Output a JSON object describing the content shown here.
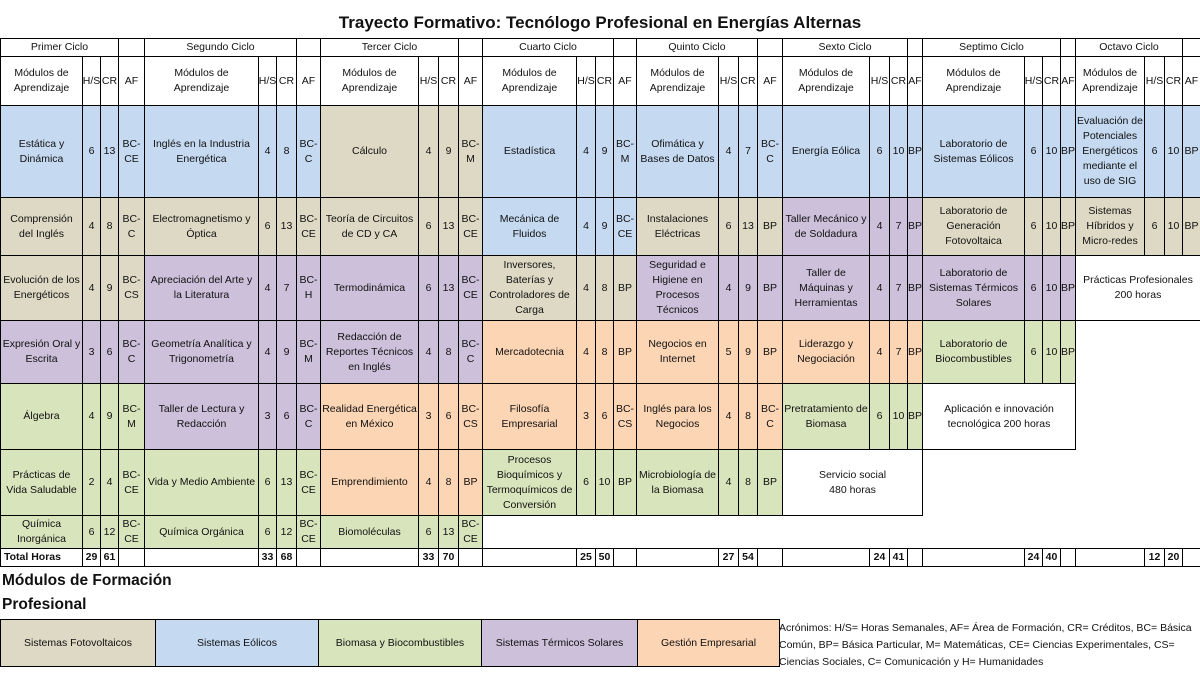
{
  "title": "Trayecto Formativo: Tecnólogo Profesional en Energías Alternas",
  "colors": {
    "fotovoltaicos": "#ddd9c4",
    "eolicos": "#c5d9f1",
    "biomasa": "#d8e4bc",
    "termicos": "#ccc0da",
    "gestion": "#fcd5b4",
    "none": "#ffffff"
  },
  "cycles": [
    {
      "name": "Primer Ciclo",
      "headers": {
        "module": "Módulos de Aprendizaje",
        "hs": "H/S",
        "cr": "CR",
        "af": "AF"
      },
      "modules": [
        {
          "name": "Estática y Dinámica",
          "hs": "6",
          "cr": "13",
          "af": "BC-CE",
          "area": "eolicos"
        },
        {
          "name": "Comprensión del Inglés",
          "hs": "4",
          "cr": "8",
          "af": "BC-C",
          "area": "fotovoltaicos"
        },
        {
          "name": "Evolución de los Energéticos",
          "hs": "4",
          "cr": "9",
          "af": "BC-CS",
          "area": "fotovoltaicos"
        },
        {
          "name": "Expresión Oral y Escrita",
          "hs": "3",
          "cr": "6",
          "af": "BC-C",
          "area": "termicos"
        },
        {
          "name": "Álgebra",
          "hs": "4",
          "cr": "9",
          "af": "BC-M",
          "area": "biomasa"
        },
        {
          "name": "Prácticas de Vida Saludable",
          "hs": "2",
          "cr": "4",
          "af": "BC-CE",
          "area": "biomasa"
        },
        {
          "name": "Química Inorgánica",
          "hs": "6",
          "cr": "12",
          "af": "BC-CE",
          "area": "biomasa"
        }
      ],
      "total_hs": "29",
      "total_cr": "61"
    },
    {
      "name": "Segundo Ciclo",
      "headers": {
        "module": "Módulos de Aprendizaje",
        "hs": "H/S",
        "cr": "CR",
        "af": "AF"
      },
      "modules": [
        {
          "name": "Inglés en la Industria Energética",
          "hs": "4",
          "cr": "8",
          "af": "BC-C",
          "area": "eolicos"
        },
        {
          "name": "Electromagnetismo y Óptica",
          "hs": "6",
          "cr": "13",
          "af": "BC-CE",
          "area": "fotovoltaicos"
        },
        {
          "name": "Apreciación del Arte y la Literatura",
          "hs": "4",
          "cr": "7",
          "af": "BC-H",
          "area": "termicos"
        },
        {
          "name": "Geometría Analítica y Trigonometría",
          "hs": "4",
          "cr": "9",
          "af": "BC-M",
          "area": "termicos"
        },
        {
          "name": "Taller de Lectura y Redacción",
          "hs": "3",
          "cr": "6",
          "af": "BC-C",
          "area": "termicos"
        },
        {
          "name": "Vida y Medio Ambiente",
          "hs": "6",
          "cr": "13",
          "af": "BC-CE",
          "area": "biomasa"
        },
        {
          "name": "Química Orgánica",
          "hs": "6",
          "cr": "12",
          "af": "BC-CE",
          "area": "biomasa"
        }
      ],
      "total_hs": "33",
      "total_cr": "68"
    },
    {
      "name": "Tercer Ciclo",
      "headers": {
        "module": "Módulos de Aprendizaje",
        "hs": "H/S",
        "cr": "CR",
        "af": "AF"
      },
      "modules": [
        {
          "name": "Cálculo",
          "hs": "4",
          "cr": "9",
          "af": "BC-M",
          "area": "fotovoltaicos"
        },
        {
          "name": "Teoría de Circuitos de CD y CA",
          "hs": "6",
          "cr": "13",
          "af": "BC-CE",
          "area": "fotovoltaicos"
        },
        {
          "name": "Termodinámica",
          "hs": "6",
          "cr": "13",
          "af": "BC-CE",
          "area": "termicos"
        },
        {
          "name": "Redacción de Reportes Técnicos en Inglés",
          "hs": "4",
          "cr": "8",
          "af": "BC-C",
          "area": "termicos"
        },
        {
          "name": "Realidad Energética en México",
          "hs": "3",
          "cr": "6",
          "af": "BC-CS",
          "area": "gestion"
        },
        {
          "name": "Emprendimiento",
          "hs": "4",
          "cr": "8",
          "af": "BP",
          "area": "gestion"
        },
        {
          "name": "Biomoléculas",
          "hs": "6",
          "cr": "13",
          "af": "BC-CE",
          "area": "biomasa"
        }
      ],
      "total_hs": "33",
      "total_cr": "70"
    },
    {
      "name": "Cuarto Ciclo",
      "headers": {
        "module": "Módulos de Aprendizaje",
        "hs": "H/S",
        "cr": "CR",
        "af": "AF"
      },
      "modules": [
        {
          "name": "Estadística",
          "hs": "4",
          "cr": "9",
          "af": "BC-M",
          "area": "eolicos"
        },
        {
          "name": "Mecánica de Fluidos",
          "hs": "4",
          "cr": "9",
          "af": "BC-CE",
          "area": "eolicos"
        },
        {
          "name": "Inversores, Baterías y Controladores de Carga",
          "hs": "4",
          "cr": "8",
          "af": "BP",
          "area": "fotovoltaicos"
        },
        {
          "name": "Mercadotecnia",
          "hs": "4",
          "cr": "8",
          "af": "BP",
          "area": "gestion"
        },
        {
          "name": "Filosofía Empresarial",
          "hs": "3",
          "cr": "6",
          "af": "BC-CS",
          "area": "gestion"
        },
        {
          "name": "Procesos Bioquímicos y Termoquímicos de Conversión",
          "hs": "6",
          "cr": "10",
          "af": "BP",
          "area": "biomasa"
        }
      ],
      "total_hs": "25",
      "total_cr": "50"
    },
    {
      "name": "Quinto Ciclo",
      "headers": {
        "module": "Módulos de Aprendizaje",
        "hs": "H/S",
        "cr": "CR",
        "af": "AF"
      },
      "modules": [
        {
          "name": "Ofimática y Bases de Datos",
          "hs": "4",
          "cr": "7",
          "af": "BC-C",
          "area": "eolicos"
        },
        {
          "name": "Instalaciones Eléctricas",
          "hs": "6",
          "cr": "13",
          "af": "BP",
          "area": "fotovoltaicos"
        },
        {
          "name": "Seguridad e Higiene en Procesos Técnicos",
          "hs": "4",
          "cr": "9",
          "af": "BP",
          "area": "termicos"
        },
        {
          "name": "Negocios en Internet",
          "hs": "5",
          "cr": "9",
          "af": "BP",
          "area": "gestion"
        },
        {
          "name": "Inglés para los Negocios",
          "hs": "4",
          "cr": "8",
          "af": "BC-C",
          "area": "gestion"
        },
        {
          "name": "Microbiología de la Biomasa",
          "hs": "4",
          "cr": "8",
          "af": "BP",
          "area": "biomasa"
        }
      ],
      "total_hs": "27",
      "total_cr": "54"
    },
    {
      "name": "Sexto Ciclo",
      "headers": {
        "module": "Módulos de Aprendizaje",
        "hs": "H/S",
        "cr": "CR",
        "af": "AF"
      },
      "modules": [
        {
          "name": "Energía Eólica",
          "hs": "6",
          "cr": "10",
          "af": "BP",
          "area": "eolicos"
        },
        {
          "name": "Taller Mecánico y de Soldadura",
          "hs": "4",
          "cr": "7",
          "af": "BP",
          "area": "termicos"
        },
        {
          "name": "Taller de Máquinas y Herramientas",
          "hs": "4",
          "cr": "7",
          "af": "BP",
          "area": "termicos"
        },
        {
          "name": "Liderazgo y Negociación",
          "hs": "4",
          "cr": "7",
          "af": "BP",
          "area": "gestion"
        },
        {
          "name": "Pretratamiento de Biomasa",
          "hs": "6",
          "cr": "10",
          "af": "BP",
          "area": "biomasa"
        }
      ],
      "total_hs": "24",
      "total_cr": "41"
    },
    {
      "name": "Septimo Ciclo",
      "headers": {
        "module": "Módulos de Aprendizaje",
        "hs": "H/S",
        "cr": "CR",
        "af": "AF"
      },
      "modules": [
        {
          "name": "Laboratorio de Sistemas Eólicos",
          "hs": "6",
          "cr": "10",
          "af": "BP",
          "area": "eolicos"
        },
        {
          "name": "Laboratorio de Generación Fotovoltaica",
          "hs": "6",
          "cr": "10",
          "af": "BP",
          "area": "fotovoltaicos"
        },
        {
          "name": "Laboratorio de Sistemas Térmicos Solares",
          "hs": "6",
          "cr": "10",
          "af": "BP",
          "area": "termicos"
        },
        {
          "name": "Laboratorio de Biocombustibles",
          "hs": "6",
          "cr": "10",
          "af": "BP",
          "area": "biomasa"
        }
      ],
      "total_hs": "24",
      "total_cr": "40"
    },
    {
      "name": "Octavo Ciclo",
      "headers": {
        "module": "Módulos de Aprendizaje",
        "hs": "H/S",
        "cr": "CR",
        "af": "AF"
      },
      "modules": [
        {
          "name": "Evaluación de Potenciales Energéticos mediante el uso de SIG",
          "hs": "6",
          "cr": "10",
          "af": "BP",
          "area": "eolicos"
        },
        {
          "name": "Sistemas Híbridos y Micro-redes",
          "hs": "6",
          "cr": "10",
          "af": "BP",
          "area": "fotovoltaicos"
        }
      ],
      "total_hs": "12",
      "total_cr": "20"
    }
  ],
  "special_blocks": {
    "servicio_social": "Servicio social 480 horas",
    "aplicacion": "Aplicación e innovación tecnológica 200 horas",
    "practicas": "Prácticas Profesionales 200 horas"
  },
  "total_label": "Total Horas",
  "legend": {
    "heading_line1": "Módulos de Formación",
    "heading_line2": "Profesional",
    "items": [
      {
        "label": "Sistemas Fotovoltaicos",
        "area": "fotovoltaicos"
      },
      {
        "label": "Sistemas Eólicos",
        "area": "eolicos"
      },
      {
        "label": "Biomasa y Biocombustibles",
        "area": "biomasa"
      },
      {
        "label": "Sistemas Térmicos Solares",
        "area": "termicos"
      },
      {
        "label": "Gestión Empresarial",
        "area": "gestion"
      }
    ],
    "acronyms": "Acrónimos: H/S= Horas Semanales, AF= Área de Formación, CR= Créditos, BC= Básica Común, BP= Básica Particular, M= Matemáticas, CE= Ciencias Experimentales, CS= Ciencias Sociales, C= Comunicación y H= Humanidades"
  }
}
